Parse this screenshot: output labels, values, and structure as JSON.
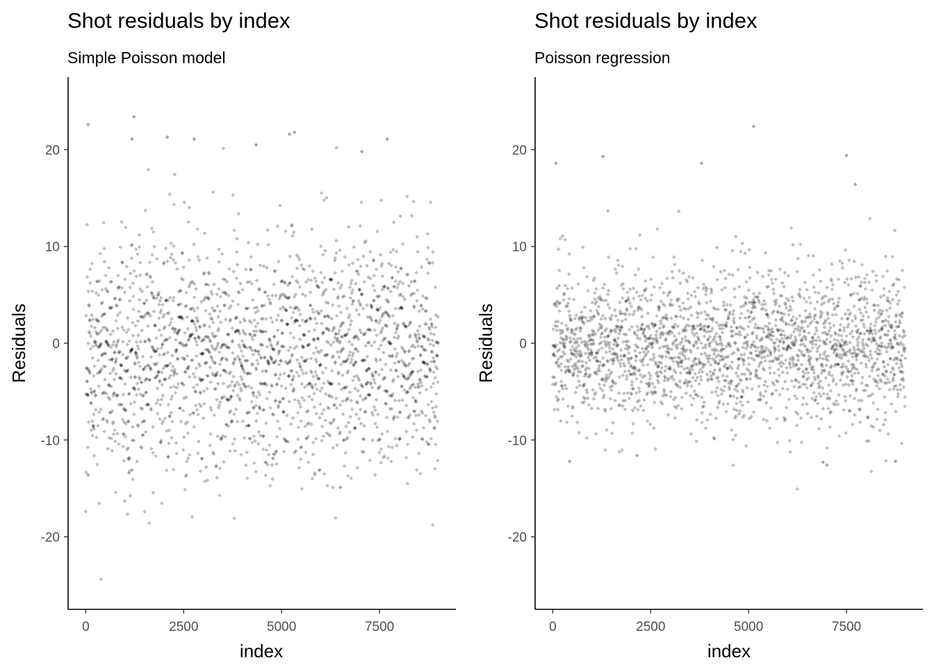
{
  "chart_data": [
    {
      "type": "scatter",
      "title": "Shot residuals by index",
      "subtitle": "Simple Poisson model",
      "xlabel": "index",
      "ylabel": "Residuals",
      "xlim": [
        -450,
        9450
      ],
      "ylim": [
        -27.5,
        27.5
      ],
      "xticks": [
        0,
        2500,
        5000,
        7500
      ],
      "yticks": [
        -20,
        -10,
        0,
        10,
        20
      ],
      "grid": false,
      "legend": "none",
      "point_color": "#000000",
      "point_alpha": 0.25,
      "n_points": 9000,
      "sample_points": [
        {
          "x": 60,
          "y": 22.6
        },
        {
          "x": 1230,
          "y": 23.4
        },
        {
          "x": 1180,
          "y": 21.1
        },
        {
          "x": 2080,
          "y": 21.3
        },
        {
          "x": 2770,
          "y": 21.1
        },
        {
          "x": 4350,
          "y": 20.5
        },
        {
          "x": 5200,
          "y": 21.6
        },
        {
          "x": 5330,
          "y": 21.8
        },
        {
          "x": 7700,
          "y": 21.1
        },
        {
          "x": 7050,
          "y": 19.8
        },
        {
          "x": 60,
          "y": -13.6
        },
        {
          "x": 1180,
          "y": -13.1
        },
        {
          "x": 1090,
          "y": -11.9
        },
        {
          "x": 6500,
          "y": -14.9
        },
        {
          "x": 4780,
          "y": -11.9
        }
      ]
    },
    {
      "type": "scatter",
      "title": "Shot residuals by index",
      "subtitle": "Poisson regression",
      "xlabel": "index",
      "ylabel": "Residuals",
      "xlim": [
        -450,
        9450
      ],
      "ylim": [
        -27.5,
        27.5
      ],
      "xticks": [
        0,
        2500,
        5000,
        7500
      ],
      "yticks": [
        -20,
        -10,
        0,
        10,
        20
      ],
      "grid": false,
      "legend": "none",
      "point_color": "#000000",
      "point_alpha": 0.25,
      "n_points": 9000,
      "sample_points": [
        {
          "x": 80,
          "y": 18.6
        },
        {
          "x": 1280,
          "y": 19.3
        },
        {
          "x": 3800,
          "y": 18.6
        },
        {
          "x": 5130,
          "y": 22.4
        },
        {
          "x": 7500,
          "y": 19.4
        },
        {
          "x": 7720,
          "y": 16.4
        },
        {
          "x": 430,
          "y": -12.2
        },
        {
          "x": 6900,
          "y": -12.3
        },
        {
          "x": 7000,
          "y": -12.6
        },
        {
          "x": 8750,
          "y": -12.2
        },
        {
          "x": 2150,
          "y": -11.6
        }
      ]
    }
  ]
}
